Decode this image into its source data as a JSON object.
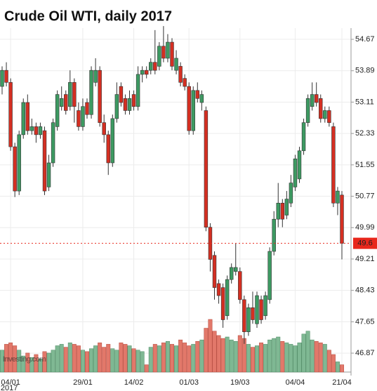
{
  "chart_data": {
    "type": "candlestick",
    "title": "Crude Oil WTI, daily 2017",
    "watermark": "Investing.com",
    "x_year": "2017",
    "categories": [
      null,
      null,
      "04/01",
      null,
      null,
      null,
      null,
      null,
      null,
      null,
      null,
      null,
      null,
      null,
      null,
      null,
      null,
      null,
      null,
      "29/01",
      null,
      null,
      null,
      null,
      null,
      null,
      null,
      null,
      null,
      null,
      null,
      "14/02",
      null,
      null,
      null,
      null,
      null,
      null,
      null,
      null,
      null,
      null,
      null,
      null,
      "01/03",
      null,
      null,
      null,
      null,
      null,
      null,
      null,
      null,
      null,
      null,
      null,
      "19/03",
      null,
      null,
      null,
      null,
      null,
      null,
      null,
      null,
      null,
      null,
      null,
      null,
      "04/04",
      null,
      null,
      null,
      null,
      null,
      null,
      null,
      null,
      null,
      null,
      "21/04"
    ],
    "open": [
      53.5,
      53.9,
      53.6,
      52.0,
      50.9,
      52.3,
      53.1,
      52.4,
      52.5,
      52.3,
      52.4,
      51.0,
      51.6,
      52.5,
      53.0,
      53.3,
      53.0,
      53.6,
      52.9,
      52.5,
      53.1,
      52.8,
      53.6,
      53.9,
      52.6,
      52.3,
      51.6,
      52.7,
      53.5,
      53.2,
      52.9,
      53.3,
      53.0,
      53.8,
      53.9,
      53.9,
      54.1,
      54.0,
      54.5,
      54.2,
      54.6,
      53.9,
      54.0,
      53.7,
      53.5,
      52.4,
      53.4,
      53.1,
      52.9,
      50.0,
      49.3,
      48.6,
      48.5,
      47.8,
      48.7,
      48.9,
      48.9,
      48.2,
      47.4,
      48.0,
      47.6,
      48.2,
      47.8,
      48.2,
      49.4,
      50.2,
      50.6,
      50.3,
      50.6,
      51.0,
      51.2,
      51.9,
      52.6,
      53.0,
      53.3,
      53.2,
      52.7,
      52.9,
      52.5,
      50.6,
      50.8
    ],
    "high": [
      54.0,
      54.1,
      53.7,
      52.1,
      52.4,
      53.2,
      53.3,
      52.7,
      52.6,
      52.6,
      52.5,
      51.8,
      52.7,
      53.4,
      53.5,
      53.4,
      53.9,
      53.7,
      53.1,
      53.2,
      53.2,
      54.0,
      54.2,
      54.0,
      52.8,
      52.4,
      52.8,
      53.6,
      53.6,
      53.3,
      53.4,
      53.4,
      54.0,
      54.0,
      54.0,
      54.2,
      54.9,
      54.6,
      55.0,
      54.8,
      54.7,
      54.4,
      54.1,
      53.8,
      53.6,
      53.5,
      53.6,
      53.4,
      53.0,
      50.1,
      49.4,
      48.7,
      48.6,
      48.8,
      49.1,
      49.6,
      49.0,
      48.3,
      48.1,
      48.4,
      48.4,
      48.3,
      48.4,
      49.5,
      50.4,
      51.1,
      50.7,
      50.9,
      51.3,
      51.8,
      52.0,
      52.7,
      53.3,
      53.6,
      53.6,
      53.3,
      53.0,
      53.0,
      52.6,
      51.0,
      50.9
    ],
    "low": [
      53.3,
      53.5,
      51.9,
      50.75,
      50.8,
      52.2,
      52.3,
      52.3,
      52.1,
      52.2,
      50.8,
      50.9,
      51.5,
      52.4,
      52.9,
      52.8,
      52.9,
      52.6,
      52.4,
      52.4,
      52.7,
      52.7,
      53.5,
      52.5,
      52.1,
      51.3,
      51.5,
      52.6,
      53.0,
      52.8,
      52.8,
      52.9,
      52.9,
      53.6,
      53.7,
      53.8,
      53.8,
      53.9,
      54.1,
      54.1,
      53.9,
      53.8,
      53.5,
      53.4,
      52.3,
      52.3,
      53.1,
      52.9,
      49.9,
      48.9,
      48.2,
      48.1,
      47.5,
      47.7,
      48.6,
      48.8,
      48.1,
      47.1,
      47.3,
      47.6,
      47.5,
      47.6,
      47.7,
      48.1,
      49.3,
      50.0,
      50.0,
      50.2,
      50.5,
      50.9,
      51.1,
      51.8,
      52.5,
      52.9,
      53.0,
      52.6,
      52.6,
      52.5,
      50.5,
      50.3,
      49.2
    ],
    "close": [
      53.9,
      53.6,
      52.0,
      50.9,
      52.3,
      53.1,
      52.4,
      52.5,
      52.3,
      52.5,
      50.9,
      51.6,
      52.6,
      53.3,
      53.2,
      52.9,
      53.6,
      53.0,
      52.5,
      53.0,
      52.8,
      53.9,
      53.9,
      52.6,
      52.3,
      51.6,
      52.7,
      53.3,
      53.1,
      52.9,
      53.2,
      53.0,
      53.8,
      53.9,
      53.8,
      54.1,
      53.9,
      54.5,
      54.2,
      54.6,
      54.0,
      54.2,
      53.6,
      53.5,
      52.4,
      53.4,
      53.2,
      53.3,
      50.0,
      49.2,
      48.5,
      48.3,
      47.7,
      48.7,
      49.0,
      49.0,
      48.2,
      47.4,
      48.0,
      47.7,
      48.3,
      47.7,
      48.3,
      49.4,
      50.2,
      50.6,
      50.2,
      50.7,
      51.1,
      51.7,
      51.9,
      52.6,
      53.2,
      53.3,
      53.1,
      52.7,
      52.9,
      52.6,
      50.6,
      50.9,
      49.6
    ],
    "volume": [
      30,
      38,
      40,
      36,
      30,
      22,
      26,
      20,
      24,
      18,
      28,
      26,
      30,
      36,
      38,
      34,
      40,
      38,
      36,
      30,
      28,
      32,
      36,
      40,
      34,
      38,
      32,
      30,
      40,
      38,
      36,
      32,
      30,
      28,
      10,
      34,
      38,
      36,
      40,
      42,
      38,
      36,
      44,
      40,
      36,
      38,
      42,
      44,
      60,
      72,
      56,
      50,
      46,
      48,
      44,
      42,
      50,
      46,
      38,
      34,
      36,
      40,
      38,
      44,
      46,
      48,
      42,
      40,
      38,
      36,
      40,
      52,
      56,
      44,
      42,
      40,
      38,
      30,
      24,
      14,
      10
    ],
    "up_color": "#3d9a62",
    "down_color": "#d42f22",
    "volume_up_color": "#7fb893",
    "volume_down_color": "#e2786a",
    "last_price": 49.6,
    "last_price_color": "#e8271c",
    "ylim": [
      46.4,
      54.95
    ],
    "yticks": [
      54.67,
      53.89,
      53.11,
      52.33,
      51.55,
      50.77,
      49.99,
      49.21,
      48.43,
      47.65,
      46.87
    ],
    "grid": true
  }
}
